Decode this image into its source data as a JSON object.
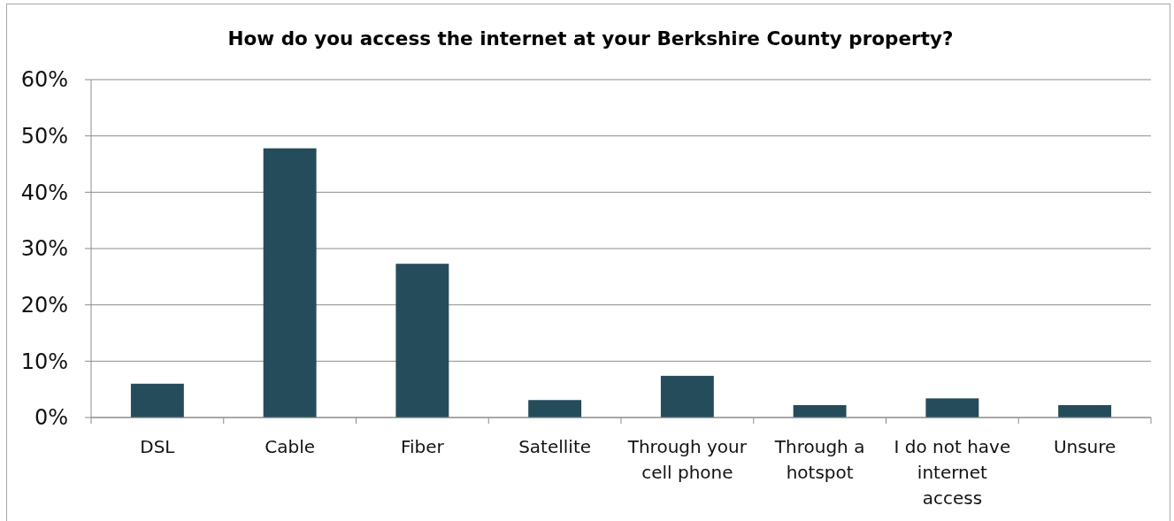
{
  "chart_data": {
    "type": "bar",
    "title": "How do you access the internet at your Berkshire County property?",
    "categories": [
      "DSL",
      "Cable",
      "Fiber",
      "Satellite",
      "Through your cell phone",
      "Through a hotspot",
      "I do not have internet access",
      "Unsure"
    ],
    "values": [
      6.0,
      47.8,
      27.3,
      3.1,
      7.4,
      2.2,
      3.4,
      2.2
    ],
    "color": "#254c5a",
    "ylim": [
      0,
      60
    ],
    "yticks": [
      {
        "value": 0,
        "label": "0%"
      },
      {
        "value": 10,
        "label": "10%"
      },
      {
        "value": 20,
        "label": "20%"
      },
      {
        "value": 30,
        "label": "30%"
      },
      {
        "value": 40,
        "label": "40%"
      },
      {
        "value": 50,
        "label": "50%"
      },
      {
        "value": 60,
        "label": "60%"
      }
    ],
    "grid": "y"
  }
}
